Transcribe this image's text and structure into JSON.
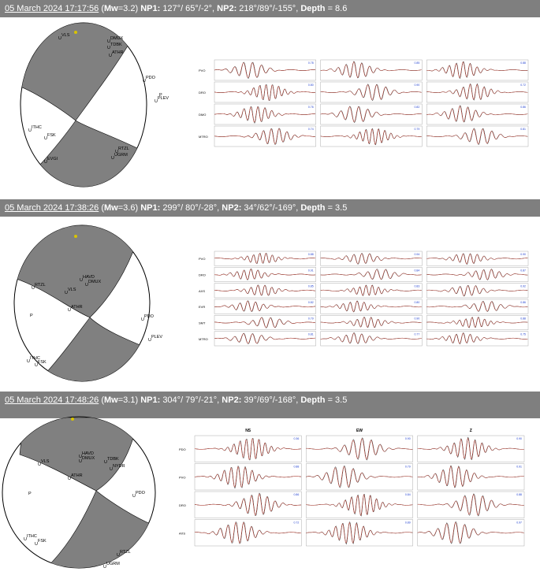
{
  "events": [
    {
      "date": "05 March 2024 17:17:56",
      "mw_label": "Mw",
      "mw": "=3.2)",
      "np1_label": "NP1:",
      "np1": "127°/ 65°/-2°,",
      "np2_label": "NP2:",
      "np2": "218°/89°/-155°,",
      "depth_label": "Depth",
      "depth": "= 8.6",
      "stations": [
        "VLS",
        "DMUX",
        "TDBK",
        "ATHR",
        "PDO",
        "PLEV",
        "ITHC",
        "FSK",
        "EVGI",
        "RTZL",
        "UGRM"
      ],
      "trace_rows": [
        "PVO",
        "DRO",
        "DMO",
        "MTRO"
      ],
      "columns": [],
      "correlations": [
        [
          "0.78",
          "0.85",
          "0.88"
        ],
        [
          "0.80",
          "0.90",
          "0.72"
        ],
        [
          "0.76",
          "0.82",
          "0.86"
        ],
        [
          "0.74",
          "0.79",
          "0.81"
        ]
      ]
    },
    {
      "date": "05 March 2024 17:38:26",
      "mw_label": "Mw",
      "mw": "=3.6)",
      "np1_label": "NP1:",
      "np1": "299°/ 80°/-28°,",
      "np2_label": "NP2:",
      "np2": "34°/62°/-169°,",
      "depth_label": "Depth",
      "depth": "= 3.5",
      "stations": [
        "VLS",
        "RTZL",
        "HAVD",
        "DMUX",
        "ATHR",
        "PDO",
        "PLEV",
        "ITHC",
        "FSK",
        "LKGC",
        "GRAM"
      ],
      "trace_rows": [
        "PVO",
        "DRO",
        "AXS",
        "EVR",
        "SMT",
        "MTRO"
      ],
      "columns": [],
      "correlations": [
        [
          "0.88",
          "0.94",
          "0.90"
        ],
        [
          "0.91",
          "0.84",
          "0.87"
        ],
        [
          "0.85",
          "0.83",
          "0.92"
        ],
        [
          "0.82",
          "0.80",
          "0.86"
        ],
        [
          "0.79",
          "0.90",
          "0.88"
        ],
        [
          "0.81",
          "0.77",
          "0.75"
        ]
      ]
    },
    {
      "date": "05 March 2024 17:48:26",
      "mw_label": "Mw",
      "mw": "=3.1)",
      "np1_label": "NP1:",
      "np1": "304°/ 79°/-21°,",
      "np2_label": "NP2:",
      "np2": "39°/69°/-168°,",
      "depth_label": "Depth",
      "depth": "= 3.5",
      "stations": [
        "VLS",
        "HAVD",
        "DMUX",
        "TDBK",
        "NYDR",
        "ATHR",
        "PDO",
        "ITHC",
        "FSK",
        "RTZL",
        "UGRM"
      ],
      "trace_rows": [
        "PDO",
        "PVO",
        "DRO",
        "AXS"
      ],
      "columns": [
        "NS",
        "EW",
        "Z"
      ],
      "correlations": [
        [
          "0.36",
          "0.90",
          "0.90"
        ],
        [
          "0.88",
          "0.79",
          "0.91"
        ],
        [
          "0.86",
          "0.84",
          "0.88"
        ],
        [
          "0.72",
          "0.89",
          "0.97"
        ]
      ]
    }
  ]
}
